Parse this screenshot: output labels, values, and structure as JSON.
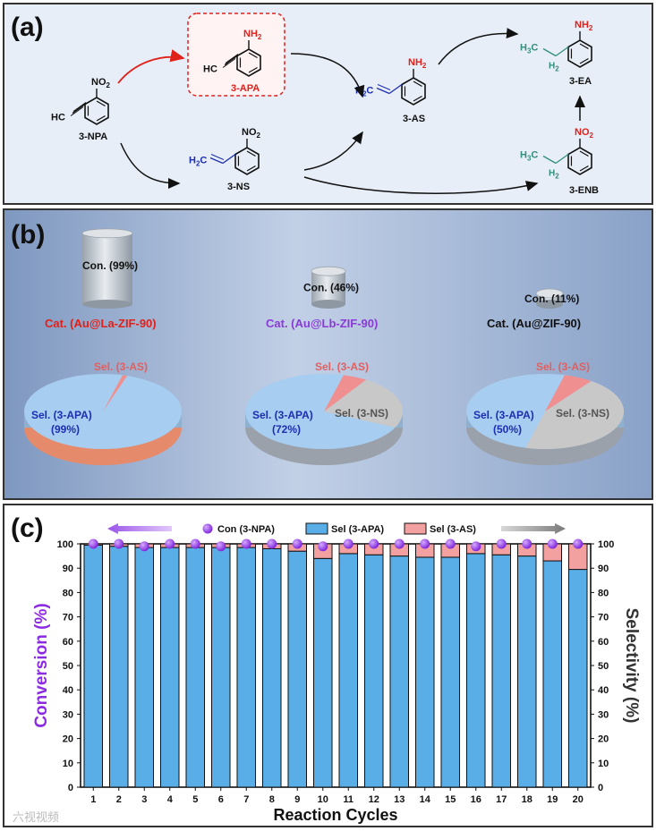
{
  "panel_a": {
    "label": "(a)",
    "compounds": {
      "npa": {
        "name": "3-NPA",
        "group": "NO2",
        "alkyne": "HC"
      },
      "apa": {
        "name": "3-APA",
        "group": "NH2",
        "alkyne": "HC"
      },
      "ns": {
        "name": "3-NS",
        "group": "NO2",
        "alkene": "H2C"
      },
      "as": {
        "name": "3-AS",
        "group": "NH2",
        "alkene": "H2C"
      },
      "ea": {
        "name": "3-EA",
        "group": "NH2",
        "alkyl_a": "H3C",
        "alkyl_b": "H2"
      },
      "enb": {
        "name": "3-ENB",
        "group": "NO2",
        "alkyl_a": "H3C",
        "alkyl_b": "H2"
      }
    }
  },
  "panel_b": {
    "label": "(b)",
    "catalysts": [
      {
        "cat": "Cat. (Au@La-ZIF-90)",
        "conversion": "Con. (99%)",
        "conv_value": 99,
        "sel_apa": "Sel. (3-APA)",
        "sel_apa_pct": "(99%)",
        "apa": 99,
        "as": 1,
        "ns": 0,
        "sel_as": "Sel. (3-AS)",
        "sel_ns": "",
        "color": "#e0201a"
      },
      {
        "cat": "Cat. (Au@Lb-ZIF-90)",
        "conversion": "Con. (46%)",
        "conv_value": 46,
        "sel_apa": "Sel. (3-APA)",
        "sel_apa_pct": "(72%)",
        "apa": 72,
        "as": 5,
        "ns": 23,
        "sel_as": "Sel. (3-AS)",
        "sel_ns": "Sel. (3-NS)",
        "color": "#8a3ad8"
      },
      {
        "cat": "Cat. (Au@ZIF-90)",
        "conversion": "Con. (11%)",
        "conv_value": 11,
        "sel_apa": "Sel. (3-APA)",
        "sel_apa_pct": "(50%)",
        "apa": 50,
        "as": 6,
        "ns": 44,
        "sel_as": "Sel. (3-AS)",
        "sel_ns": "Sel. (3-NS)",
        "color": "#111111"
      }
    ]
  },
  "chart_data": {
    "label": "(c)",
    "type": "bar",
    "xlabel": "Reaction Cycles",
    "ylabel_left": "Conversion (%)",
    "ylabel_right": "Selectivity (%)",
    "ylim": [
      0,
      100
    ],
    "categories": [
      "1",
      "2",
      "3",
      "4",
      "5",
      "6",
      "7",
      "8",
      "9",
      "10",
      "11",
      "12",
      "13",
      "14",
      "15",
      "16",
      "17",
      "18",
      "19",
      "20"
    ],
    "yticks": [
      "0",
      "10",
      "20",
      "30",
      "40",
      "50",
      "60",
      "70",
      "80",
      "90",
      "100"
    ],
    "series": [
      {
        "name": "Con (3-NPA)",
        "kind": "scatter",
        "color": "#8a2be2",
        "values": [
          100,
          100,
          99,
          100,
          100,
          99,
          100,
          100,
          100,
          99,
          100,
          100,
          100,
          100,
          100,
          99,
          100,
          100,
          100,
          100
        ]
      },
      {
        "name": "Sel (3-APA)",
        "kind": "stacked-bar",
        "color": "#5aaee8",
        "values": [
          99.5,
          99,
          98.5,
          98.5,
          98.5,
          98.5,
          98.5,
          98,
          97,
          94,
          96,
          95.5,
          95,
          94.5,
          94.5,
          96,
          95.5,
          95,
          93,
          89.5
        ]
      },
      {
        "name": "Sel (3-AS)",
        "kind": "stacked-bar",
        "color": "#f2a0a0",
        "values": [
          0.5,
          1,
          1.5,
          1.5,
          1.5,
          1.5,
          1.5,
          2,
          3,
          6,
          4,
          4.5,
          5,
          5.5,
          5.5,
          4,
          4.5,
          5,
          7,
          10.5
        ]
      }
    ],
    "legend_position": "top",
    "colors": {
      "left_axis": "#8a2be2",
      "right_axis": "#333333"
    }
  },
  "watermark": "六视视频"
}
